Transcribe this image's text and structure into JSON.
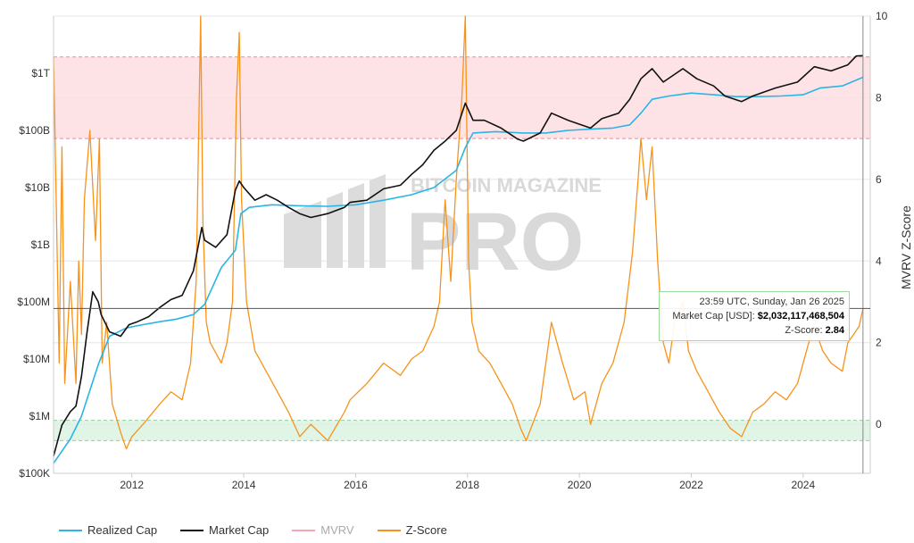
{
  "colors": {
    "realized_cap": "#2bb4e6",
    "market_cap": "#111111",
    "mvrv": "#f5a3b5",
    "z_score": "#f7931a",
    "red_band": "#fde3e6",
    "green_band": "#e1f5e6"
  },
  "watermark": {
    "top": "BITCOIN MAGAZINE",
    "bottom": "PRO"
  },
  "tooltip": {
    "time": "23:59 UTC, Sunday, Jan 26 2025",
    "mcap_label": "Market Cap [USD]:",
    "mcap_value": "$2,032,117,468,504",
    "z_label": "Z-Score:",
    "z_value": "2.84"
  },
  "chart_data": {
    "type": "line",
    "xlabel": "",
    "x_ticks": [
      "2012",
      "2014",
      "2016",
      "2018",
      "2020",
      "2022",
      "2024"
    ],
    "y_left": {
      "scale": "log",
      "ticks": [
        "$100K",
        "$1M",
        "$10M",
        "$100M",
        "$1B",
        "$10B",
        "$100B",
        "$1T"
      ],
      "range": [
        100000,
        10000000000000
      ]
    },
    "y_right": {
      "label": "MVRV Z-Score",
      "ticks": [
        "0",
        "2",
        "4",
        "6",
        "8",
        "10"
      ],
      "range": [
        -1.2,
        10
      ]
    },
    "bands": [
      {
        "axis": "right",
        "from": 7.0,
        "to": 9.0,
        "color": "red"
      },
      {
        "axis": "right",
        "from": -0.4,
        "to": 0.1,
        "color": "green"
      }
    ],
    "crosshair": {
      "date": 2025.07,
      "value": 2.84
    },
    "legend": [
      "Realized Cap",
      "Market Cap",
      "MVRV",
      "Z-Score"
    ],
    "series": [
      {
        "name": "Market Cap",
        "axis": "left",
        "x": [
          2010.6,
          2010.75,
          2010.9,
          2011.0,
          2011.1,
          2011.2,
          2011.3,
          2011.4,
          2011.45,
          2011.6,
          2011.8,
          2011.95,
          2012.1,
          2012.3,
          2012.5,
          2012.7,
          2012.9,
          2013.1,
          2013.25,
          2013.3,
          2013.5,
          2013.7,
          2013.85,
          2013.92,
          2014.0,
          2014.2,
          2014.4,
          2014.6,
          2014.8,
          2015.0,
          2015.2,
          2015.5,
          2015.8,
          2015.9,
          2016.2,
          2016.5,
          2016.8,
          2017.0,
          2017.2,
          2017.4,
          2017.6,
          2017.8,
          2017.96,
          2018.1,
          2018.3,
          2018.6,
          2018.9,
          2019.0,
          2019.3,
          2019.5,
          2019.8,
          2020.2,
          2020.4,
          2020.7,
          2020.9,
          2021.1,
          2021.3,
          2021.5,
          2021.85,
          2022.1,
          2022.4,
          2022.6,
          2022.9,
          2023.1,
          2023.5,
          2023.9,
          2024.2,
          2024.5,
          2024.8,
          2024.95,
          2025.07
        ],
        "values": [
          200000,
          700000,
          1200000,
          1500000,
          5000000,
          30000000,
          150000000,
          100000000,
          60000000,
          30000000,
          25000000,
          40000000,
          45000000,
          55000000,
          80000000,
          110000000,
          130000000,
          350000000,
          2000000000,
          1200000000,
          900000000,
          1500000000,
          9000000000,
          13000000000,
          10000000000,
          6000000000,
          7500000000,
          6000000000,
          4500000000,
          3500000000,
          3000000000,
          3500000000,
          4500000000,
          5500000000,
          6000000000,
          9500000000,
          11000000000,
          17000000000,
          25000000000,
          45000000000,
          65000000000,
          100000000000,
          300000000000,
          150000000000,
          150000000000,
          110000000000,
          70000000000,
          65000000000,
          90000000000,
          200000000000,
          150000000000,
          110000000000,
          160000000000,
          200000000000,
          350000000000,
          800000000000,
          1200000000000,
          700000000000,
          1200000000000,
          800000000000,
          600000000000,
          400000000000,
          320000000000,
          400000000000,
          550000000000,
          700000000000,
          1300000000000,
          1100000000000,
          1400000000000,
          2000000000000,
          2030000000000
        ]
      },
      {
        "name": "Realized Cap",
        "axis": "left",
        "x": [
          2010.6,
          2010.9,
          2011.1,
          2011.4,
          2011.6,
          2011.9,
          2012.2,
          2012.5,
          2012.8,
          2013.1,
          2013.3,
          2013.6,
          2013.85,
          2013.95,
          2014.1,
          2014.5,
          2015.0,
          2015.5,
          2016.0,
          2016.5,
          2017.0,
          2017.4,
          2017.8,
          2017.96,
          2018.1,
          2018.5,
          2019.0,
          2019.4,
          2019.8,
          2020.2,
          2020.6,
          2020.9,
          2021.1,
          2021.3,
          2021.6,
          2022.0,
          2022.4,
          2022.8,
          2023.2,
          2023.6,
          2024.0,
          2024.3,
          2024.7,
          2025.07
        ],
        "values": [
          150000,
          400000,
          1000000,
          8000000,
          25000000,
          35000000,
          40000000,
          45000000,
          50000000,
          60000000,
          90000000,
          400000000,
          800000000,
          3500000000,
          4500000000,
          5000000000,
          4800000000,
          4700000000,
          5000000000,
          6000000000,
          7500000000,
          10000000000,
          20000000000,
          50000000000,
          90000000000,
          95000000000,
          90000000000,
          90000000000,
          100000000000,
          105000000000,
          110000000000,
          125000000000,
          200000000000,
          350000000000,
          400000000000,
          450000000000,
          420000000000,
          390000000000,
          390000000000,
          400000000000,
          420000000000,
          550000000000,
          600000000000,
          850000000000
        ]
      },
      {
        "name": "Z-Score",
        "axis": "right",
        "x": [
          2010.6,
          2010.7,
          2010.75,
          2010.8,
          2010.9,
          2011.0,
          2011.05,
          2011.1,
          2011.15,
          2011.25,
          2011.35,
          2011.42,
          2011.47,
          2011.55,
          2011.65,
          2011.8,
          2011.9,
          2012.0,
          2012.2,
          2012.5,
          2012.7,
          2012.9,
          2013.05,
          2013.15,
          2013.23,
          2013.27,
          2013.33,
          2013.4,
          2013.6,
          2013.7,
          2013.8,
          2013.87,
          2013.92,
          2013.96,
          2014.05,
          2014.2,
          2014.4,
          2014.6,
          2014.8,
          2015.0,
          2015.2,
          2015.5,
          2015.8,
          2015.9,
          2016.2,
          2016.5,
          2016.8,
          2017.0,
          2017.2,
          2017.4,
          2017.5,
          2017.6,
          2017.7,
          2017.8,
          2017.9,
          2017.96,
          2018.02,
          2018.08,
          2018.2,
          2018.4,
          2018.6,
          2018.8,
          2018.95,
          2019.05,
          2019.3,
          2019.5,
          2019.7,
          2019.9,
          2020.1,
          2020.2,
          2020.4,
          2020.6,
          2020.8,
          2020.95,
          2021.05,
          2021.1,
          2021.2,
          2021.3,
          2021.4,
          2021.5,
          2021.6,
          2021.7,
          2021.85,
          2021.95,
          2022.1,
          2022.3,
          2022.5,
          2022.7,
          2022.9,
          2023.1,
          2023.3,
          2023.5,
          2023.7,
          2023.9,
          2024.1,
          2024.2,
          2024.35,
          2024.5,
          2024.7,
          2024.8,
          2024.9,
          2025.0,
          2025.07
        ],
        "values": [
          9.0,
          1.5,
          6.8,
          1.0,
          3.5,
          1.0,
          4.0,
          2.2,
          5.5,
          7.2,
          4.5,
          7.0,
          1.5,
          2.5,
          0.5,
          -0.2,
          -0.6,
          -0.3,
          0.0,
          0.5,
          0.8,
          0.6,
          1.5,
          3.5,
          10.0,
          5.0,
          2.5,
          2.0,
          1.5,
          2.0,
          3.0,
          8.0,
          9.6,
          5.5,
          3.0,
          1.8,
          1.3,
          0.8,
          0.3,
          -0.3,
          0.0,
          -0.4,
          0.3,
          0.6,
          1.0,
          1.5,
          1.2,
          1.6,
          1.8,
          2.4,
          3.0,
          5.5,
          3.5,
          6.0,
          8.0,
          10.0,
          4.0,
          2.5,
          1.8,
          1.5,
          1.0,
          0.5,
          -0.1,
          -0.4,
          0.5,
          2.5,
          1.5,
          0.6,
          0.8,
          0.0,
          1.0,
          1.5,
          2.5,
          4.2,
          6.0,
          7.0,
          5.5,
          6.8,
          4.0,
          2.0,
          1.5,
          2.5,
          3.0,
          1.8,
          1.3,
          0.8,
          0.3,
          -0.1,
          -0.3,
          0.3,
          0.5,
          0.8,
          0.6,
          1.0,
          2.0,
          2.4,
          1.8,
          1.5,
          1.3,
          2.0,
          2.2,
          2.4,
          2.84
        ]
      },
      {
        "name": "MVRV",
        "axis": "right",
        "x": [],
        "values": []
      }
    ]
  }
}
